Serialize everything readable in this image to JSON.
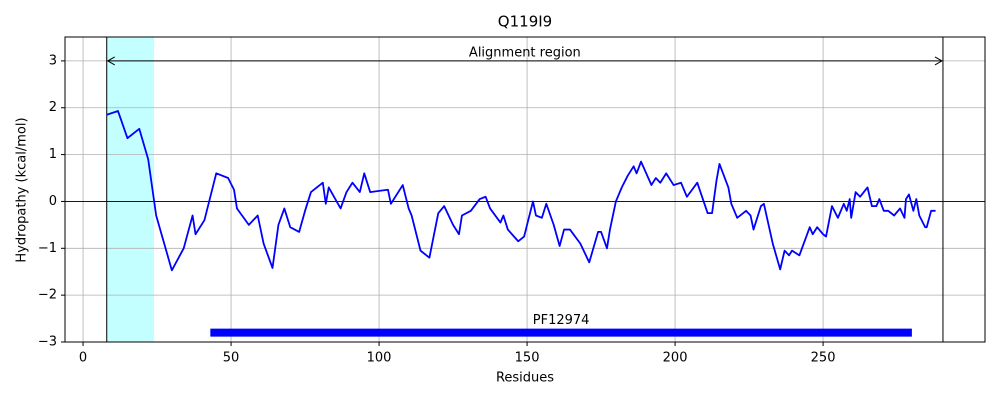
{
  "chart_data": {
    "type": "line",
    "title": "Q119I9",
    "x_label": "Residues",
    "y_label": "Hydropathy (kcal/mol)",
    "color": "#0000ff",
    "x": [
      8,
      11.8,
      15,
      19,
      22,
      24.7,
      30,
      34,
      37,
      38,
      41,
      42.6,
      45,
      49,
      51,
      52,
      56,
      59,
      61,
      64,
      66,
      68,
      70,
      73,
      75,
      77,
      81,
      82,
      83,
      87,
      89,
      91,
      93.5,
      95,
      97,
      103,
      104,
      108,
      110,
      111,
      114,
      117,
      120,
      122,
      125,
      127,
      128,
      131,
      134,
      136,
      137.5,
      141,
      142,
      143.5,
      147,
      149,
      152,
      153,
      155,
      156.5,
      159,
      161,
      162.5,
      164.5,
      168,
      171,
      174,
      175,
      177,
      178,
      180,
      182,
      184,
      186,
      187,
      188.5,
      192,
      193.5,
      195,
      197,
      199.5,
      202,
      204,
      207.5,
      211,
      212.5,
      214,
      215,
      218,
      219,
      221,
      224,
      225.5,
      226.5,
      229,
      230,
      233,
      235.5,
      237,
      238.5,
      239.5,
      242,
      245.5,
      246.5,
      248,
      250,
      251,
      253,
      255,
      257,
      258,
      259,
      259.5,
      261,
      262.5,
      265,
      266.5,
      268,
      269,
      270.5,
      272,
      274,
      276,
      277.5,
      278,
      279,
      280.5,
      281.5,
      282.5,
      284.5,
      285,
      286.5,
      288
    ],
    "values": [
      1.85,
      1.93,
      1.35,
      1.55,
      0.9,
      -0.3,
      -1.47,
      -1.0,
      -0.3,
      -0.7,
      -0.4,
      0.0,
      0.6,
      0.5,
      0.25,
      -0.15,
      -0.5,
      -0.3,
      -0.9,
      -1.42,
      -0.5,
      -0.15,
      -0.55,
      -0.65,
      -0.2,
      0.2,
      0.4,
      -0.05,
      0.3,
      -0.15,
      0.2,
      0.4,
      0.2,
      0.6,
      0.2,
      0.25,
      -0.05,
      0.35,
      -0.15,
      -0.3,
      -1.05,
      -1.2,
      -0.25,
      -0.1,
      -0.5,
      -0.7,
      -0.3,
      -0.2,
      0.05,
      0.1,
      -0.15,
      -0.45,
      -0.3,
      -0.6,
      -0.85,
      -0.75,
      0.0,
      -0.3,
      -0.35,
      -0.05,
      -0.5,
      -0.95,
      -0.6,
      -0.6,
      -0.9,
      -1.3,
      -0.65,
      -0.65,
      -1.0,
      -0.6,
      0.0,
      0.3,
      0.55,
      0.75,
      0.6,
      0.85,
      0.35,
      0.5,
      0.4,
      0.6,
      0.35,
      0.4,
      0.1,
      0.4,
      -0.25,
      -0.25,
      0.45,
      0.8,
      0.3,
      -0.05,
      -0.35,
      -0.2,
      -0.3,
      -0.6,
      -0.1,
      -0.05,
      -0.9,
      -1.45,
      -1.05,
      -1.15,
      -1.05,
      -1.15,
      -0.55,
      -0.7,
      -0.55,
      -0.7,
      -0.75,
      -0.1,
      -0.35,
      -0.05,
      -0.2,
      0.05,
      -0.35,
      0.2,
      0.1,
      0.3,
      -0.1,
      -0.1,
      0.05,
      -0.2,
      -0.2,
      -0.3,
      -0.15,
      -0.35,
      0.05,
      0.15,
      -0.2,
      0.05,
      -0.3,
      -0.55,
      -0.55,
      -0.2,
      -0.2
    ],
    "xlim": [
      -6.1,
      304.7
    ],
    "ylim": [
      -3,
      3.51
    ],
    "xticks": [
      0,
      50,
      100,
      150,
      200,
      250
    ],
    "yticks": [
      {
        "value": -3,
        "label": "−3"
      },
      {
        "value": -2,
        "label": "−2"
      },
      {
        "value": -1,
        "label": "−1"
      },
      0,
      1,
      2,
      3
    ],
    "grid": true,
    "zero_line": true,
    "highlight_span": [
      8,
      24
    ],
    "highlight_color": "#c4ffff",
    "region": {
      "label": "Alignment region",
      "start": 8,
      "end": 290.5,
      "y": 3
    },
    "domains": [
      {
        "label": "PF12974",
        "start": 43,
        "end": 280,
        "y": -2.8
      }
    ]
  }
}
